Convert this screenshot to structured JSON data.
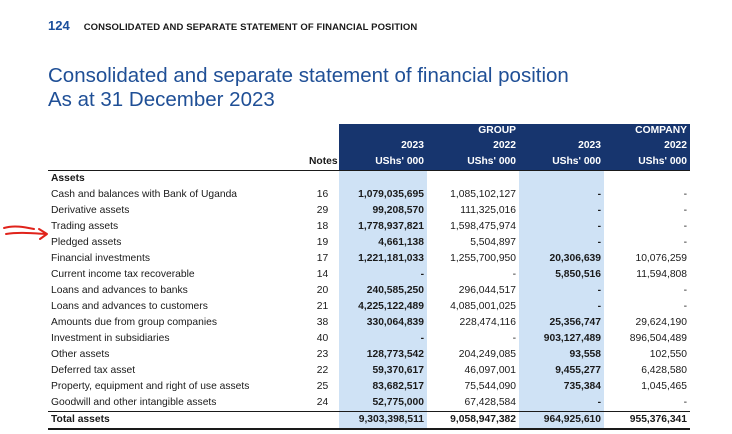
{
  "header": {
    "page_number": "124",
    "title": "CONSOLIDATED AND SEPARATE STATEMENT OF FINANCIAL POSITION"
  },
  "document": {
    "title_line1": "Consolidated and separate statement of financial position",
    "title_line2": "As at 31 December 2023"
  },
  "table": {
    "group_label": "GROUP",
    "company_label": "COMPANY",
    "notes_label": "Notes",
    "year_2023": "2023",
    "year_2022": "2022",
    "unit": "UShs' 000",
    "section_label": "Assets",
    "rows": [
      {
        "label": "Cash and balances with Bank of Uganda",
        "note": "16",
        "g2023": "1,079,035,695",
        "g2022": "1,085,102,127",
        "c2023": "-",
        "c2022": "-"
      },
      {
        "label": "Derivative assets",
        "note": "29",
        "g2023": "99,208,570",
        "g2022": "111,325,016",
        "c2023": "-",
        "c2022": "-"
      },
      {
        "label": "Trading assets",
        "note": "18",
        "g2023": "1,778,937,821",
        "g2022": "1,598,475,974",
        "c2023": "-",
        "c2022": "-"
      },
      {
        "label": "Pledged assets",
        "note": "19",
        "g2023": "4,661,138",
        "g2022": "5,504,897",
        "c2023": "-",
        "c2022": "-"
      },
      {
        "label": "Financial investments",
        "note": "17",
        "g2023": "1,221,181,033",
        "g2022": "1,255,700,950",
        "c2023": "20,306,639",
        "c2022": "10,076,259"
      },
      {
        "label": "Current income tax recoverable",
        "note": "14",
        "g2023": "-",
        "g2022": "-",
        "c2023": "5,850,516",
        "c2022": "11,594,808"
      },
      {
        "label": "Loans and advances to banks",
        "note": "20",
        "g2023": "240,585,250",
        "g2022": "296,044,517",
        "c2023": "-",
        "c2022": "-"
      },
      {
        "label": "Loans and advances to customers",
        "note": "21",
        "g2023": "4,225,122,489",
        "g2022": "4,085,001,025",
        "c2023": "-",
        "c2022": "-"
      },
      {
        "label": "Amounts due from group companies",
        "note": "38",
        "g2023": "330,064,839",
        "g2022": "228,474,116",
        "c2023": "25,356,747",
        "c2022": "29,624,190"
      },
      {
        "label": "Investment in subsidiaries",
        "note": "40",
        "g2023": "-",
        "g2022": "-",
        "c2023": "903,127,489",
        "c2022": "896,504,489"
      },
      {
        "label": "Other assets",
        "note": "23",
        "g2023": "128,773,542",
        "g2022": "204,249,085",
        "c2023": "93,558",
        "c2022": "102,550"
      },
      {
        "label": "Deferred tax asset",
        "note": "22",
        "g2023": "59,370,617",
        "g2022": "46,097,001",
        "c2023": "9,455,277",
        "c2022": "6,428,580"
      },
      {
        "label": "Property, equipment and right of use assets",
        "note": "25",
        "g2023": "83,682,517",
        "g2022": "75,544,090",
        "c2023": "735,384",
        "c2022": "1,045,465"
      },
      {
        "label": "Goodwill and other intangible assets",
        "note": "24",
        "g2023": "52,775,000",
        "g2022": "67,428,584",
        "c2023": "-",
        "c2022": "-"
      }
    ],
    "total": {
      "label": "Total assets",
      "g2023": "9,303,398,511",
      "g2022": "9,058,947,382",
      "c2023": "964,925,610",
      "c2022": "955,376,341"
    }
  },
  "colors": {
    "accent": "#1f4f96",
    "header_fill": "#17356e",
    "highlight": "#cfe2f5",
    "annotation": "#e0231b"
  }
}
